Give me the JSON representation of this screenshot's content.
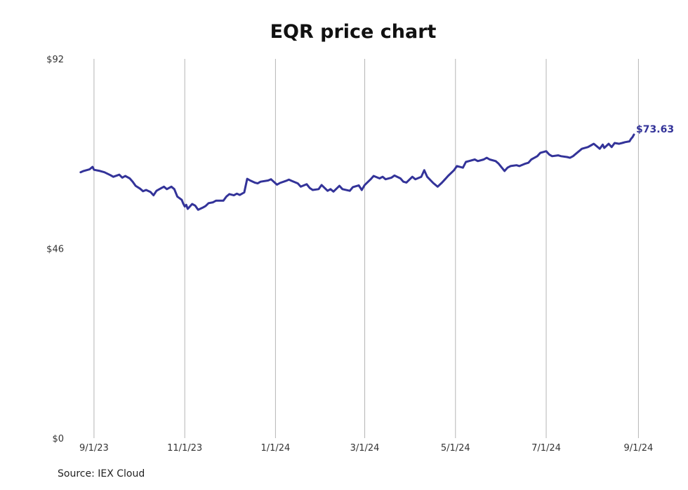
{
  "source": "Source: IEX Cloud",
  "chart_data": {
    "type": "line",
    "title": "EQR price chart",
    "xlabel": "",
    "ylabel": "",
    "ylim": [
      0,
      92
    ],
    "y_ticks": [
      0,
      46,
      92
    ],
    "y_tick_labels": [
      "$0",
      "$46",
      "$92"
    ],
    "x_range": [
      "2023-08-16",
      "2024-09-06"
    ],
    "x_ticks": [
      "2023-09-01",
      "2023-11-01",
      "2024-01-01",
      "2024-03-01",
      "2024-05-01",
      "2024-07-01",
      "2024-09-01"
    ],
    "x_tick_labels": [
      "9/1/23",
      "11/1/23",
      "1/1/24",
      "3/1/24",
      "5/1/24",
      "7/1/24",
      "9/1/24"
    ],
    "grid": "vertical",
    "line_color": "#333399",
    "end_label": "$73.63",
    "series": [
      {
        "points": [
          [
            "2023-08-23",
            64.5
          ],
          [
            "2023-08-25",
            64.8
          ],
          [
            "2023-08-29",
            65.2
          ],
          [
            "2023-08-31",
            65.8
          ],
          [
            "2023-09-01",
            65.1
          ],
          [
            "2023-09-05",
            64.8
          ],
          [
            "2023-09-08",
            64.5
          ],
          [
            "2023-09-12",
            63.8
          ],
          [
            "2023-09-14",
            63.4
          ],
          [
            "2023-09-18",
            63.9
          ],
          [
            "2023-09-20",
            63.2
          ],
          [
            "2023-09-22",
            63.6
          ],
          [
            "2023-09-25",
            63.0
          ],
          [
            "2023-09-27",
            62.2
          ],
          [
            "2023-09-29",
            61.2
          ],
          [
            "2023-10-02",
            60.5
          ],
          [
            "2023-10-04",
            59.9
          ],
          [
            "2023-10-06",
            60.2
          ],
          [
            "2023-10-09",
            59.7
          ],
          [
            "2023-10-11",
            58.9
          ],
          [
            "2023-10-13",
            60.0
          ],
          [
            "2023-10-16",
            60.6
          ],
          [
            "2023-10-18",
            61.0
          ],
          [
            "2023-10-20",
            60.4
          ],
          [
            "2023-10-23",
            61.0
          ],
          [
            "2023-10-25",
            60.4
          ],
          [
            "2023-10-27",
            58.6
          ],
          [
            "2023-10-30",
            57.8
          ],
          [
            "2023-10-31",
            56.9
          ],
          [
            "2023-11-01",
            56.2
          ],
          [
            "2023-11-02",
            56.6
          ],
          [
            "2023-11-03",
            55.6
          ],
          [
            "2023-11-06",
            56.8
          ],
          [
            "2023-11-08",
            56.4
          ],
          [
            "2023-11-10",
            55.4
          ],
          [
            "2023-11-13",
            55.9
          ],
          [
            "2023-11-15",
            56.3
          ],
          [
            "2023-11-17",
            57.0
          ],
          [
            "2023-11-20",
            57.2
          ],
          [
            "2023-11-22",
            57.6
          ],
          [
            "2023-11-27",
            57.6
          ],
          [
            "2023-11-29",
            58.6
          ],
          [
            "2023-12-01",
            59.2
          ],
          [
            "2023-12-04",
            58.9
          ],
          [
            "2023-12-06",
            59.3
          ],
          [
            "2023-12-08",
            59.0
          ],
          [
            "2023-12-11",
            59.6
          ],
          [
            "2023-12-13",
            62.9
          ],
          [
            "2023-12-15",
            62.5
          ],
          [
            "2023-12-18",
            62.0
          ],
          [
            "2023-12-20",
            61.8
          ],
          [
            "2023-12-22",
            62.2
          ],
          [
            "2023-12-27",
            62.5
          ],
          [
            "2023-12-29",
            62.8
          ],
          [
            "2024-01-02",
            61.5
          ],
          [
            "2024-01-04",
            61.9
          ],
          [
            "2024-01-08",
            62.4
          ],
          [
            "2024-01-10",
            62.7
          ],
          [
            "2024-01-12",
            62.4
          ],
          [
            "2024-01-16",
            61.8
          ],
          [
            "2024-01-18",
            61.0
          ],
          [
            "2024-01-22",
            61.6
          ],
          [
            "2024-01-24",
            60.7
          ],
          [
            "2024-01-26",
            60.2
          ],
          [
            "2024-01-30",
            60.4
          ],
          [
            "2024-02-01",
            61.4
          ],
          [
            "2024-02-05",
            60.0
          ],
          [
            "2024-02-07",
            60.4
          ],
          [
            "2024-02-09",
            59.8
          ],
          [
            "2024-02-13",
            61.2
          ],
          [
            "2024-02-15",
            60.4
          ],
          [
            "2024-02-20",
            60.0
          ],
          [
            "2024-02-22",
            60.9
          ],
          [
            "2024-02-26",
            61.3
          ],
          [
            "2024-02-28",
            60.2
          ],
          [
            "2024-03-01",
            61.4
          ],
          [
            "2024-03-05",
            62.8
          ],
          [
            "2024-03-07",
            63.6
          ],
          [
            "2024-03-11",
            63.0
          ],
          [
            "2024-03-13",
            63.4
          ],
          [
            "2024-03-15",
            62.8
          ],
          [
            "2024-03-19",
            63.2
          ],
          [
            "2024-03-21",
            63.7
          ],
          [
            "2024-03-25",
            63.0
          ],
          [
            "2024-03-27",
            62.2
          ],
          [
            "2024-03-29",
            62.0
          ],
          [
            "2024-04-02",
            63.4
          ],
          [
            "2024-04-04",
            62.8
          ],
          [
            "2024-04-08",
            63.4
          ],
          [
            "2024-04-10",
            65.0
          ],
          [
            "2024-04-12",
            63.4
          ],
          [
            "2024-04-16",
            61.9
          ],
          [
            "2024-04-18",
            61.3
          ],
          [
            "2024-04-19",
            61.0
          ],
          [
            "2024-04-22",
            62.0
          ],
          [
            "2024-04-24",
            62.8
          ],
          [
            "2024-04-26",
            63.6
          ],
          [
            "2024-04-30",
            65.0
          ],
          [
            "2024-05-02",
            66.0
          ],
          [
            "2024-05-06",
            65.6
          ],
          [
            "2024-05-08",
            67.0
          ],
          [
            "2024-05-10",
            67.2
          ],
          [
            "2024-05-14",
            67.6
          ],
          [
            "2024-05-16",
            67.2
          ],
          [
            "2024-05-20",
            67.6
          ],
          [
            "2024-05-22",
            68.0
          ],
          [
            "2024-05-24",
            67.6
          ],
          [
            "2024-05-28",
            67.2
          ],
          [
            "2024-05-30",
            66.6
          ],
          [
            "2024-06-03",
            64.8
          ],
          [
            "2024-06-05",
            65.6
          ],
          [
            "2024-06-07",
            66.0
          ],
          [
            "2024-06-11",
            66.2
          ],
          [
            "2024-06-13",
            66.0
          ],
          [
            "2024-06-17",
            66.6
          ],
          [
            "2024-06-19",
            66.8
          ],
          [
            "2024-06-21",
            67.6
          ],
          [
            "2024-06-25",
            68.4
          ],
          [
            "2024-06-27",
            69.2
          ],
          [
            "2024-07-01",
            69.6
          ],
          [
            "2024-07-03",
            68.8
          ],
          [
            "2024-07-05",
            68.4
          ],
          [
            "2024-07-09",
            68.6
          ],
          [
            "2024-07-11",
            68.4
          ],
          [
            "2024-07-15",
            68.2
          ],
          [
            "2024-07-17",
            68.0
          ],
          [
            "2024-07-19",
            68.4
          ],
          [
            "2024-07-23",
            69.6
          ],
          [
            "2024-07-25",
            70.2
          ],
          [
            "2024-07-29",
            70.6
          ],
          [
            "2024-07-31",
            71.0
          ],
          [
            "2024-08-02",
            71.4
          ],
          [
            "2024-08-06",
            70.2
          ],
          [
            "2024-08-08",
            71.2
          ],
          [
            "2024-08-09",
            70.4
          ],
          [
            "2024-08-12",
            71.4
          ],
          [
            "2024-08-14",
            70.6
          ],
          [
            "2024-08-16",
            71.6
          ],
          [
            "2024-08-19",
            71.4
          ],
          [
            "2024-08-21",
            71.6
          ],
          [
            "2024-08-23",
            71.8
          ],
          [
            "2024-08-26",
            72.0
          ],
          [
            "2024-08-27",
            72.6
          ],
          [
            "2024-08-28",
            73.0
          ],
          [
            "2024-08-29",
            73.63
          ]
        ]
      }
    ]
  }
}
